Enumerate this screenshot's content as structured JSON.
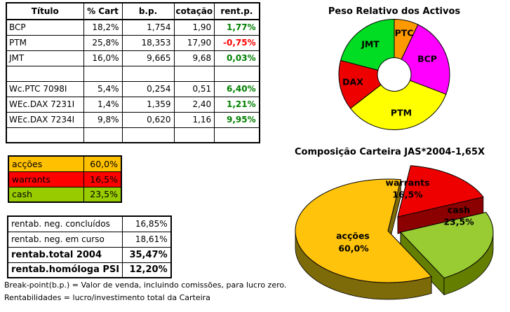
{
  "main_table": {
    "headers": [
      "Título",
      "% Cart",
      "b.p.",
      "cotação",
      "rent.p."
    ],
    "rows": [
      {
        "titulo": "BCP",
        "cart": "18,2%",
        "bp": "1,754",
        "cotacao": "1,90",
        "rent": "1,77%",
        "rent_color": "#008000"
      },
      {
        "titulo": "PTM",
        "cart": "25,8%",
        "bp": "18,353",
        "cotacao": "17,90",
        "rent": "-0,75%",
        "rent_color": "#FF0000"
      },
      {
        "titulo": "JMT",
        "cart": "16,0%",
        "bp": "9,665",
        "cotacao": "9,68",
        "rent": "0,03%",
        "rent_color": "#008000"
      },
      {
        "titulo": "",
        "cart": "",
        "bp": "",
        "cotacao": "",
        "rent": "",
        "rent_color": ""
      },
      {
        "titulo": "Wc.PTC 7098I",
        "cart": "5,4%",
        "bp": "0,254",
        "cotacao": "0,51",
        "rent": "6,40%",
        "rent_color": "#008000"
      },
      {
        "titulo": "WEc.DAX 7231I",
        "cart": "1,4%",
        "bp": "1,359",
        "cotacao": "2,40",
        "rent": "1,21%",
        "rent_color": "#008000"
      },
      {
        "titulo": "WEc.DAX 7234I",
        "cart": "9,8%",
        "bp": "0,620",
        "cotacao": "1,16",
        "rent": "9,95%",
        "rent_color": "#008000"
      },
      {
        "titulo": "",
        "cart": "",
        "bp": "",
        "cotacao": "",
        "rent": "",
        "rent_color": ""
      }
    ]
  },
  "allocation_table": {
    "rows": [
      {
        "label": "acções",
        "value": "60,0%",
        "bg": "#FFC000"
      },
      {
        "label": "warrants",
        "value": "16,5%",
        "bg": "#FF0000"
      },
      {
        "label": "cash",
        "value": "23,5%",
        "bg": "#99CC00"
      }
    ]
  },
  "returns_table": {
    "rows": [
      {
        "label": "rentab. neg. concluídos",
        "value": "16,85%"
      },
      {
        "label": "rentab. neg. em curso",
        "value": "18,61%"
      },
      {
        "label": "rentab.total 2004",
        "value": "35,47%"
      },
      {
        "label": "rentab.homóloga PSI",
        "value": "12,20%"
      }
    ]
  },
  "footnotes": [
    "Break-point(b.p.) = Valor de venda, incluindo comissões, para lucro zero.",
    "Rentabilidades = lucro/investimento total da Carteira"
  ],
  "chart_data": [
    {
      "type": "pie",
      "subtype": "donut",
      "title": "Peso Relativo dos Activos",
      "legend_position": "none",
      "slices": [
        {
          "label": "PTC",
          "value": 5.4,
          "color": "#FF9900"
        },
        {
          "label": "BCP",
          "value": 18.2,
          "color": "#FF00FF"
        },
        {
          "label": "PTM",
          "value": 25.8,
          "color": "#FFFF00"
        },
        {
          "label": "DAX",
          "value": 11.2,
          "color": "#EE0000"
        },
        {
          "label": "JMT",
          "value": 16.0,
          "color": "#00DD22"
        }
      ]
    },
    {
      "type": "pie",
      "subtype": "3d-exploded",
      "title": "Composição Carteira JAS*2004-1,65X",
      "legend_position": "none",
      "slices": [
        {
          "label": "warrants",
          "value": 16.5,
          "value_label": "16,5%",
          "color": "#EE0000",
          "side_color": "#8B0000"
        },
        {
          "label": "cash",
          "value": 23.5,
          "value_label": "23,5%",
          "color": "#99CC33",
          "side_color": "#647F00"
        },
        {
          "label": "acções",
          "value": 60.0,
          "value_label": "60,0%",
          "color": "#FFC30B",
          "side_color": "#7D6A08"
        }
      ]
    }
  ]
}
